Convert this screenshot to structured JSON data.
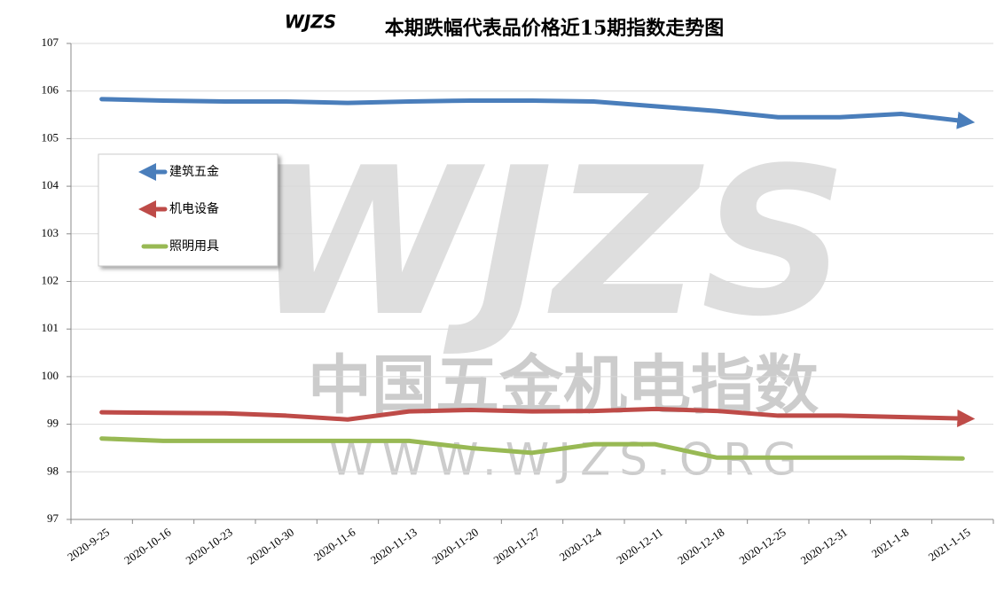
{
  "chart_data": {
    "type": "line",
    "title": "本期跌幅代表品价格近15期指数走势图",
    "watermark": {
      "logo": "WJZS",
      "name": "中国五金机电指数",
      "url": "WWW.WJZS.ORG"
    },
    "categories": [
      "2020-9-25",
      "2020-10-16",
      "2020-10-23",
      "2020-10-30",
      "2020-11-6",
      "2020-11-13",
      "2020-11-20",
      "2020-11-27",
      "2020-12-4",
      "2020-12-11",
      "2020-12-18",
      "2020-12-25",
      "2020-12-31",
      "2021-1-8",
      "2021-1-15"
    ],
    "series": [
      {
        "name": "建筑五金",
        "color": "#4a7ebb",
        "marker": "arrow",
        "values": [
          105.83,
          105.8,
          105.78,
          105.78,
          105.75,
          105.78,
          105.8,
          105.8,
          105.78,
          105.68,
          105.58,
          105.45,
          105.45,
          105.52,
          105.37
        ]
      },
      {
        "name": "机电设备",
        "color": "#be4b48",
        "marker": "arrow",
        "values": [
          99.25,
          99.24,
          99.23,
          99.18,
          99.1,
          99.27,
          99.3,
          99.27,
          99.28,
          99.32,
          99.28,
          99.18,
          99.18,
          99.15,
          99.12
        ]
      },
      {
        "name": "照明用具",
        "color": "#98b954",
        "marker": "none",
        "values": [
          98.7,
          98.65,
          98.65,
          98.65,
          98.65,
          98.65,
          98.5,
          98.4,
          98.58,
          98.58,
          98.3,
          98.3,
          98.3,
          98.3,
          98.28
        ]
      }
    ],
    "ylim": [
      97,
      107
    ],
    "yticks": [
      97,
      98,
      99,
      100,
      101,
      102,
      103,
      104,
      105,
      106,
      107
    ],
    "grid": true,
    "legend": "upper-left"
  }
}
